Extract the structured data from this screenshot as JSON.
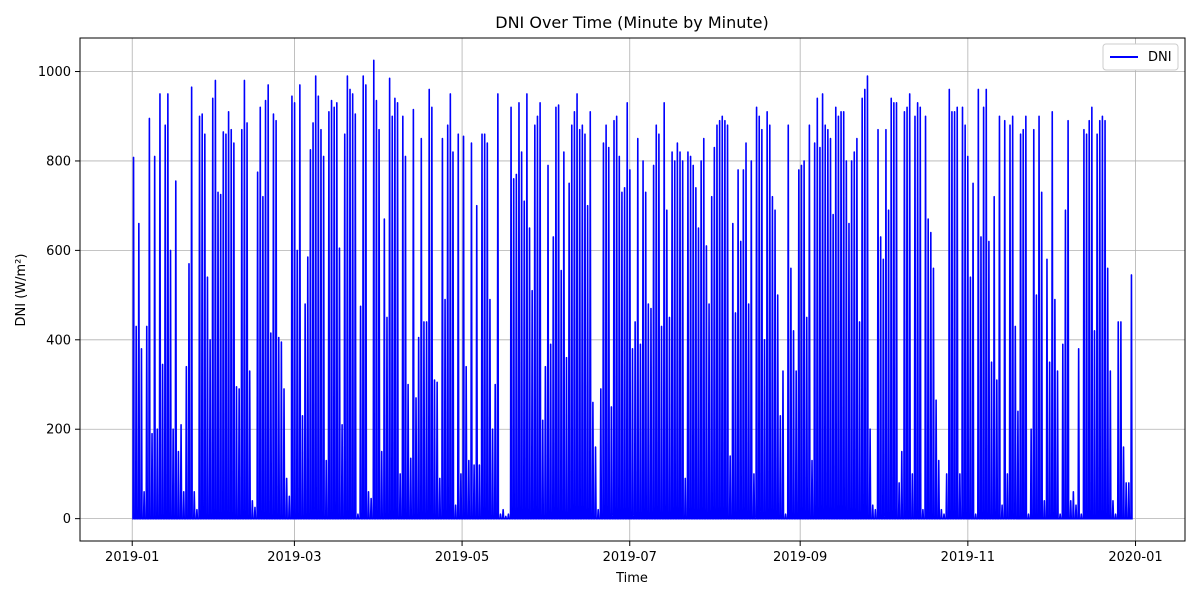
{
  "chart_data": {
    "type": "line",
    "title": "DNI Over Time (Minute by Minute)",
    "xlabel": "Time",
    "ylabel": "DNI (W/m²)",
    "x_tick_labels": [
      "2019-01",
      "2019-03",
      "2019-05",
      "2019-07",
      "2019-09",
      "2019-11",
      "2020-01"
    ],
    "x_tick_dates": [
      "2019-01-01",
      "2019-03-01",
      "2019-05-01",
      "2019-07-01",
      "2019-09-01",
      "2019-11-01",
      "2020-01-01"
    ],
    "xlim": [
      "2018-12-13",
      "2020-01-19"
    ],
    "y_ticks": [
      0,
      200,
      400,
      600,
      800,
      1000
    ],
    "y_tick_labels": [
      "0",
      "200",
      "400",
      "600",
      "800",
      "1000"
    ],
    "ylim": [
      -50,
      1075
    ],
    "grid": true,
    "legend": {
      "position": "top-right",
      "entries": [
        "DNI"
      ]
    },
    "series": [
      {
        "name": "DNI",
        "color": "#0000ff",
        "x_start": "2019-01-01",
        "x_end": "2019-12-31",
        "daily_peak": [
          808,
          430,
          660,
          380,
          60,
          430,
          895,
          190,
          810,
          200,
          950,
          345,
          880,
          950,
          600,
          200,
          755,
          150,
          210,
          60,
          340,
          570,
          965,
          60,
          20,
          900,
          905,
          860,
          540,
          400,
          940,
          980,
          730,
          725,
          865,
          860,
          910,
          870,
          840,
          295,
          290,
          870,
          980,
          885,
          330,
          40,
          25,
          775,
          920,
          720,
          935,
          970,
          415,
          905,
          890,
          405,
          395,
          290,
          90,
          50,
          945,
          930,
          600,
          970,
          230,
          480,
          585,
          825,
          885,
          990,
          945,
          870,
          810,
          130,
          910,
          935,
          920,
          930,
          605,
          210,
          860,
          990,
          960,
          950,
          905,
          10,
          475,
          990,
          970,
          60,
          45,
          1025,
          935,
          870,
          150,
          670,
          450,
          985,
          900,
          940,
          930,
          100,
          900,
          810,
          300,
          135,
          915,
          270,
          405,
          850,
          440,
          440,
          960,
          920,
          310,
          305,
          90,
          850,
          490,
          880,
          950,
          820,
          30,
          860,
          100,
          855,
          340,
          130,
          840,
          120,
          700,
          120,
          860,
          860,
          840,
          490,
          200,
          300,
          950,
          10,
          20,
          5,
          10,
          920,
          760,
          770,
          930,
          820,
          710,
          950,
          650,
          510,
          880,
          900,
          930,
          220,
          340,
          790,
          390,
          630,
          920,
          925,
          555,
          820,
          360,
          750,
          880,
          910,
          950,
          870,
          880,
          860,
          700,
          910,
          260,
          160,
          20,
          290,
          840,
          880,
          830,
          250,
          890,
          900,
          810,
          730,
          740,
          930,
          780,
          380,
          440,
          850,
          390,
          800,
          730,
          480,
          470,
          790,
          880,
          860,
          430,
          930,
          690,
          450,
          820,
          800,
          840,
          820,
          800,
          90,
          820,
          810,
          790,
          740,
          650,
          800,
          850,
          610,
          480,
          720,
          830,
          880,
          890,
          900,
          890,
          880,
          140,
          660,
          460,
          780,
          620,
          780,
          840,
          480,
          800,
          100,
          920,
          900,
          870,
          400,
          910,
          880,
          720,
          690,
          500,
          230,
          330,
          10,
          880,
          560,
          420,
          330,
          780,
          790,
          800,
          450,
          880,
          130,
          840,
          940,
          830,
          950,
          880,
          870,
          850,
          680,
          920,
          900,
          910,
          910,
          800,
          660,
          800,
          820,
          850,
          440,
          940,
          960,
          990,
          200,
          30,
          20,
          870,
          630,
          580,
          870,
          690,
          940,
          930,
          930,
          80,
          150,
          910,
          920,
          950,
          100,
          900,
          930,
          920,
          20,
          900,
          670,
          640,
          560,
          265,
          130,
          20,
          10,
          100,
          960,
          910,
          910,
          920,
          100,
          920,
          880,
          810,
          540,
          750,
          10,
          960,
          630,
          920,
          960,
          620,
          350,
          720,
          310,
          900,
          30,
          890,
          100,
          880,
          900,
          430,
          240,
          860,
          870,
          900,
          10,
          200,
          870,
          500,
          900,
          730,
          40,
          580,
          350,
          910,
          490,
          330,
          10,
          390,
          690,
          890,
          40,
          60,
          30,
          380,
          10,
          870,
          860,
          890,
          920,
          420,
          860,
          890,
          900,
          890,
          560,
          330,
          40,
          10,
          440,
          440,
          160,
          80,
          80,
          545
        ]
      }
    ]
  }
}
